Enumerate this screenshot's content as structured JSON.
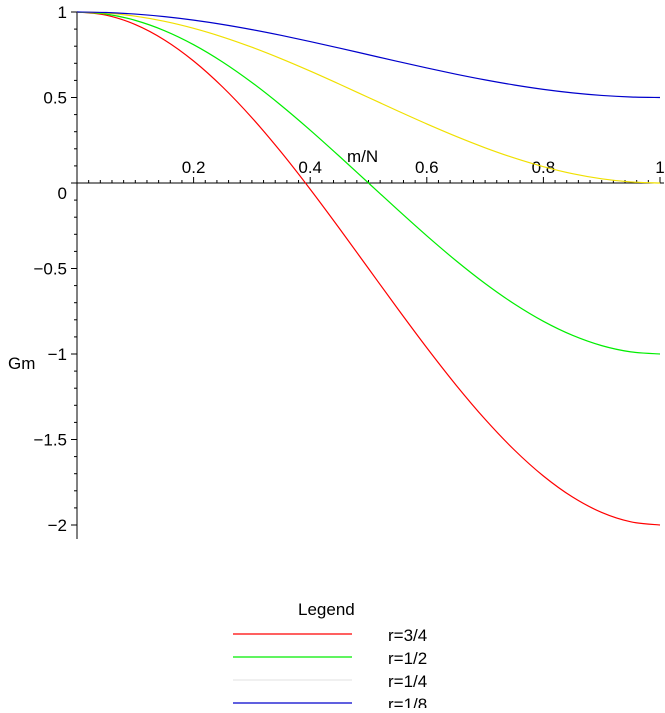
{
  "chart_data": {
    "type": "line",
    "xlabel": "m/N",
    "ylabel": "Gm",
    "xlim": [
      0,
      1
    ],
    "ylim": [
      -2,
      1
    ],
    "x_ticks": [
      0.2,
      0.4,
      0.6,
      0.8,
      1
    ],
    "x_tick_labels": [
      "0.2",
      "0.4",
      "0.6",
      "0.8",
      "1"
    ],
    "y_ticks": [
      1,
      0.5,
      0,
      -0.5,
      -1,
      -1.5,
      -2
    ],
    "y_tick_labels": [
      "1",
      "0.5",
      "0",
      "−0.5",
      "−1",
      "−1.5",
      "−2"
    ],
    "grid": false,
    "legend": {
      "title": "Legend",
      "placement": "bottom"
    },
    "x": [
      0,
      0.05,
      0.1,
      0.15,
      0.2,
      0.25,
      0.3,
      0.35,
      0.4,
      0.45,
      0.5,
      0.55,
      0.6,
      0.65,
      0.7,
      0.75,
      0.8,
      0.85,
      0.9,
      0.95,
      1
    ],
    "series": [
      {
        "name": "r=3/4",
        "color": "#ff0000",
        "legend_color": "#ff0000",
        "values": [
          1,
          0.9815,
          0.9266,
          0.8365,
          0.7135,
          0.5607,
          0.3817,
          0.181,
          -0.0365,
          -0.2653,
          -0.5,
          -0.7347,
          -0.9635,
          -1.181,
          -1.3817,
          -1.5607,
          -1.7135,
          -1.8365,
          -1.9266,
          -1.9815,
          -2
        ]
      },
      {
        "name": "r=1/2",
        "color": "#00ee00",
        "legend_color": "#00ee00",
        "values": [
          1,
          0.9877,
          0.9511,
          0.891,
          0.809,
          0.7071,
          0.5878,
          0.454,
          0.309,
          0.1564,
          0,
          -0.1564,
          -0.309,
          -0.454,
          -0.5878,
          -0.7071,
          -0.809,
          -0.891,
          -0.9511,
          -0.9877,
          -1
        ]
      },
      {
        "name": "r=1/4",
        "color": "#f0e000",
        "legend_color": "#e8e8e8",
        "values": [
          1,
          0.9938,
          0.9755,
          0.9455,
          0.9045,
          0.8536,
          0.7939,
          0.727,
          0.6545,
          0.5782,
          0.5,
          0.4218,
          0.3455,
          0.273,
          0.2061,
          0.1464,
          0.0955,
          0.0545,
          0.0245,
          0.0062,
          0
        ]
      },
      {
        "name": "r=1/8",
        "color": "#0000cc",
        "legend_color": "#0000cc",
        "values": [
          1,
          0.9969,
          0.9878,
          0.9728,
          0.9523,
          0.9268,
          0.8969,
          0.8635,
          0.8273,
          0.7891,
          0.75,
          0.7109,
          0.6727,
          0.6365,
          0.6031,
          0.5732,
          0.5477,
          0.5272,
          0.5122,
          0.5031,
          0.5
        ]
      }
    ]
  }
}
